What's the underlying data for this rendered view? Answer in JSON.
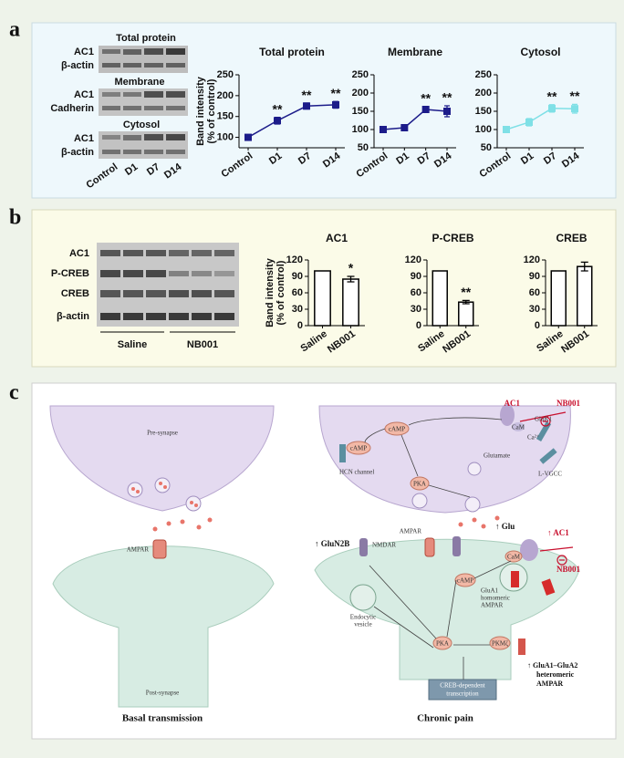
{
  "panel_labels": [
    "a",
    "b",
    "c"
  ],
  "blots_a": {
    "groups": [
      {
        "title": "Total protein",
        "rows": [
          "AC1",
          "β-actin"
        ]
      },
      {
        "title": "Membrane",
        "rows": [
          "AC1",
          "Cadherin"
        ]
      },
      {
        "title": "Cytosol",
        "rows": [
          "AC1",
          "β-actin"
        ]
      }
    ],
    "lanes": [
      "Control",
      "D1",
      "D7",
      "D14"
    ]
  },
  "blots_b": {
    "rows": [
      "AC1",
      "P-CREB",
      "CREB",
      "β-actin"
    ],
    "groups": [
      "Saline",
      "NB001"
    ]
  },
  "chart_data": [
    {
      "type": "line",
      "title": "Total protein",
      "y_label": [
        "Band intensity",
        "(% of control)"
      ],
      "categories": [
        "Control",
        "D1",
        "D7",
        "D14"
      ],
      "values": [
        100,
        140,
        175,
        178
      ],
      "errors": [
        null,
        8,
        7,
        8
      ],
      "significance": [
        null,
        "**",
        "**",
        "**"
      ],
      "color": "#1c1c8a",
      "ylim": [
        75,
        250
      ],
      "yticks": [
        100,
        150,
        200,
        250
      ]
    },
    {
      "type": "line",
      "title": "Membrane",
      "categories": [
        "Control",
        "D1",
        "D7",
        "D14"
      ],
      "values": [
        100,
        105,
        155,
        150
      ],
      "errors": [
        null,
        8,
        8,
        15
      ],
      "significance": [
        null,
        null,
        "**",
        "**"
      ],
      "color": "#1c1c8a",
      "ylim": [
        50,
        250
      ],
      "yticks": [
        50,
        100,
        150,
        200,
        250
      ]
    },
    {
      "type": "line",
      "title": "Cytosol",
      "categories": [
        "Control",
        "D1",
        "D7",
        "D14"
      ],
      "values": [
        100,
        120,
        158,
        157
      ],
      "errors": [
        null,
        10,
        10,
        12
      ],
      "significance": [
        null,
        null,
        "**",
        "**"
      ],
      "color": "#7fe0e6",
      "ylim": [
        50,
        250
      ],
      "yticks": [
        50,
        100,
        150,
        200,
        250
      ]
    },
    {
      "type": "bar",
      "title": "AC1",
      "y_label": [
        "Band intensity",
        "(% of control)"
      ],
      "categories": [
        "Saline",
        "NB001"
      ],
      "values": [
        100,
        85
      ],
      "errors": [
        null,
        5
      ],
      "significance": [
        null,
        "*"
      ],
      "color": "#ffffff",
      "ylim": [
        0,
        120
      ],
      "yticks": [
        0,
        30,
        60,
        90,
        120
      ]
    },
    {
      "type": "bar",
      "title": "P-CREB",
      "categories": [
        "Saline",
        "NB001"
      ],
      "values": [
        100,
        43
      ],
      "errors": [
        null,
        3
      ],
      "significance": [
        null,
        "**"
      ],
      "color": "#ffffff",
      "ylim": [
        0,
        120
      ],
      "yticks": [
        0,
        30,
        60,
        90,
        120
      ]
    },
    {
      "type": "bar",
      "title": "CREB",
      "categories": [
        "Saline",
        "NB001"
      ],
      "values": [
        100,
        108
      ],
      "errors": [
        null,
        8
      ],
      "significance": [
        null,
        null
      ],
      "color": "#ffffff",
      "ylim": [
        0,
        120
      ],
      "yticks": [
        0,
        30,
        60,
        90,
        120
      ]
    }
  ],
  "diagram": {
    "left": {
      "pre": "Pre-synapse",
      "ampar": "AMPAR",
      "post": "Post-synapse",
      "caption": "Basal transmission"
    },
    "right": {
      "ac1": "AC1",
      "nb001": "NB001",
      "gluk1": "GluK1",
      "cam": "CaM",
      "ca": "Ca²⁺",
      "camp": "cAMP",
      "hcn": "HCN channel",
      "camp2": "cAMP",
      "pka": "PKA",
      "glutamate": "Glutamate",
      "lvgcc": "L-VGCC",
      "glu": "↑ Glu",
      "ampar": "AMPAR",
      "nmdar": "NMDAR",
      "glun2b": "↑ GluN2B",
      "ac1_post": "↑ AC1",
      "cam_post": "CaM",
      "camp_post": "cAMP",
      "glua1": [
        "GluA1",
        "homomeric",
        "AMPAR"
      ],
      "nb001_post": "NB001",
      "endocytic": [
        "Endocytic",
        "vesicle"
      ],
      "pka_post": "PKA",
      "pkmz": "PKMζ",
      "glua12": [
        "↑ GluA1–GluA2",
        "heteromeric",
        "AMPAR"
      ],
      "creb": [
        "CREB-dependent",
        "transcription"
      ],
      "caption": "Chronic pain"
    }
  }
}
